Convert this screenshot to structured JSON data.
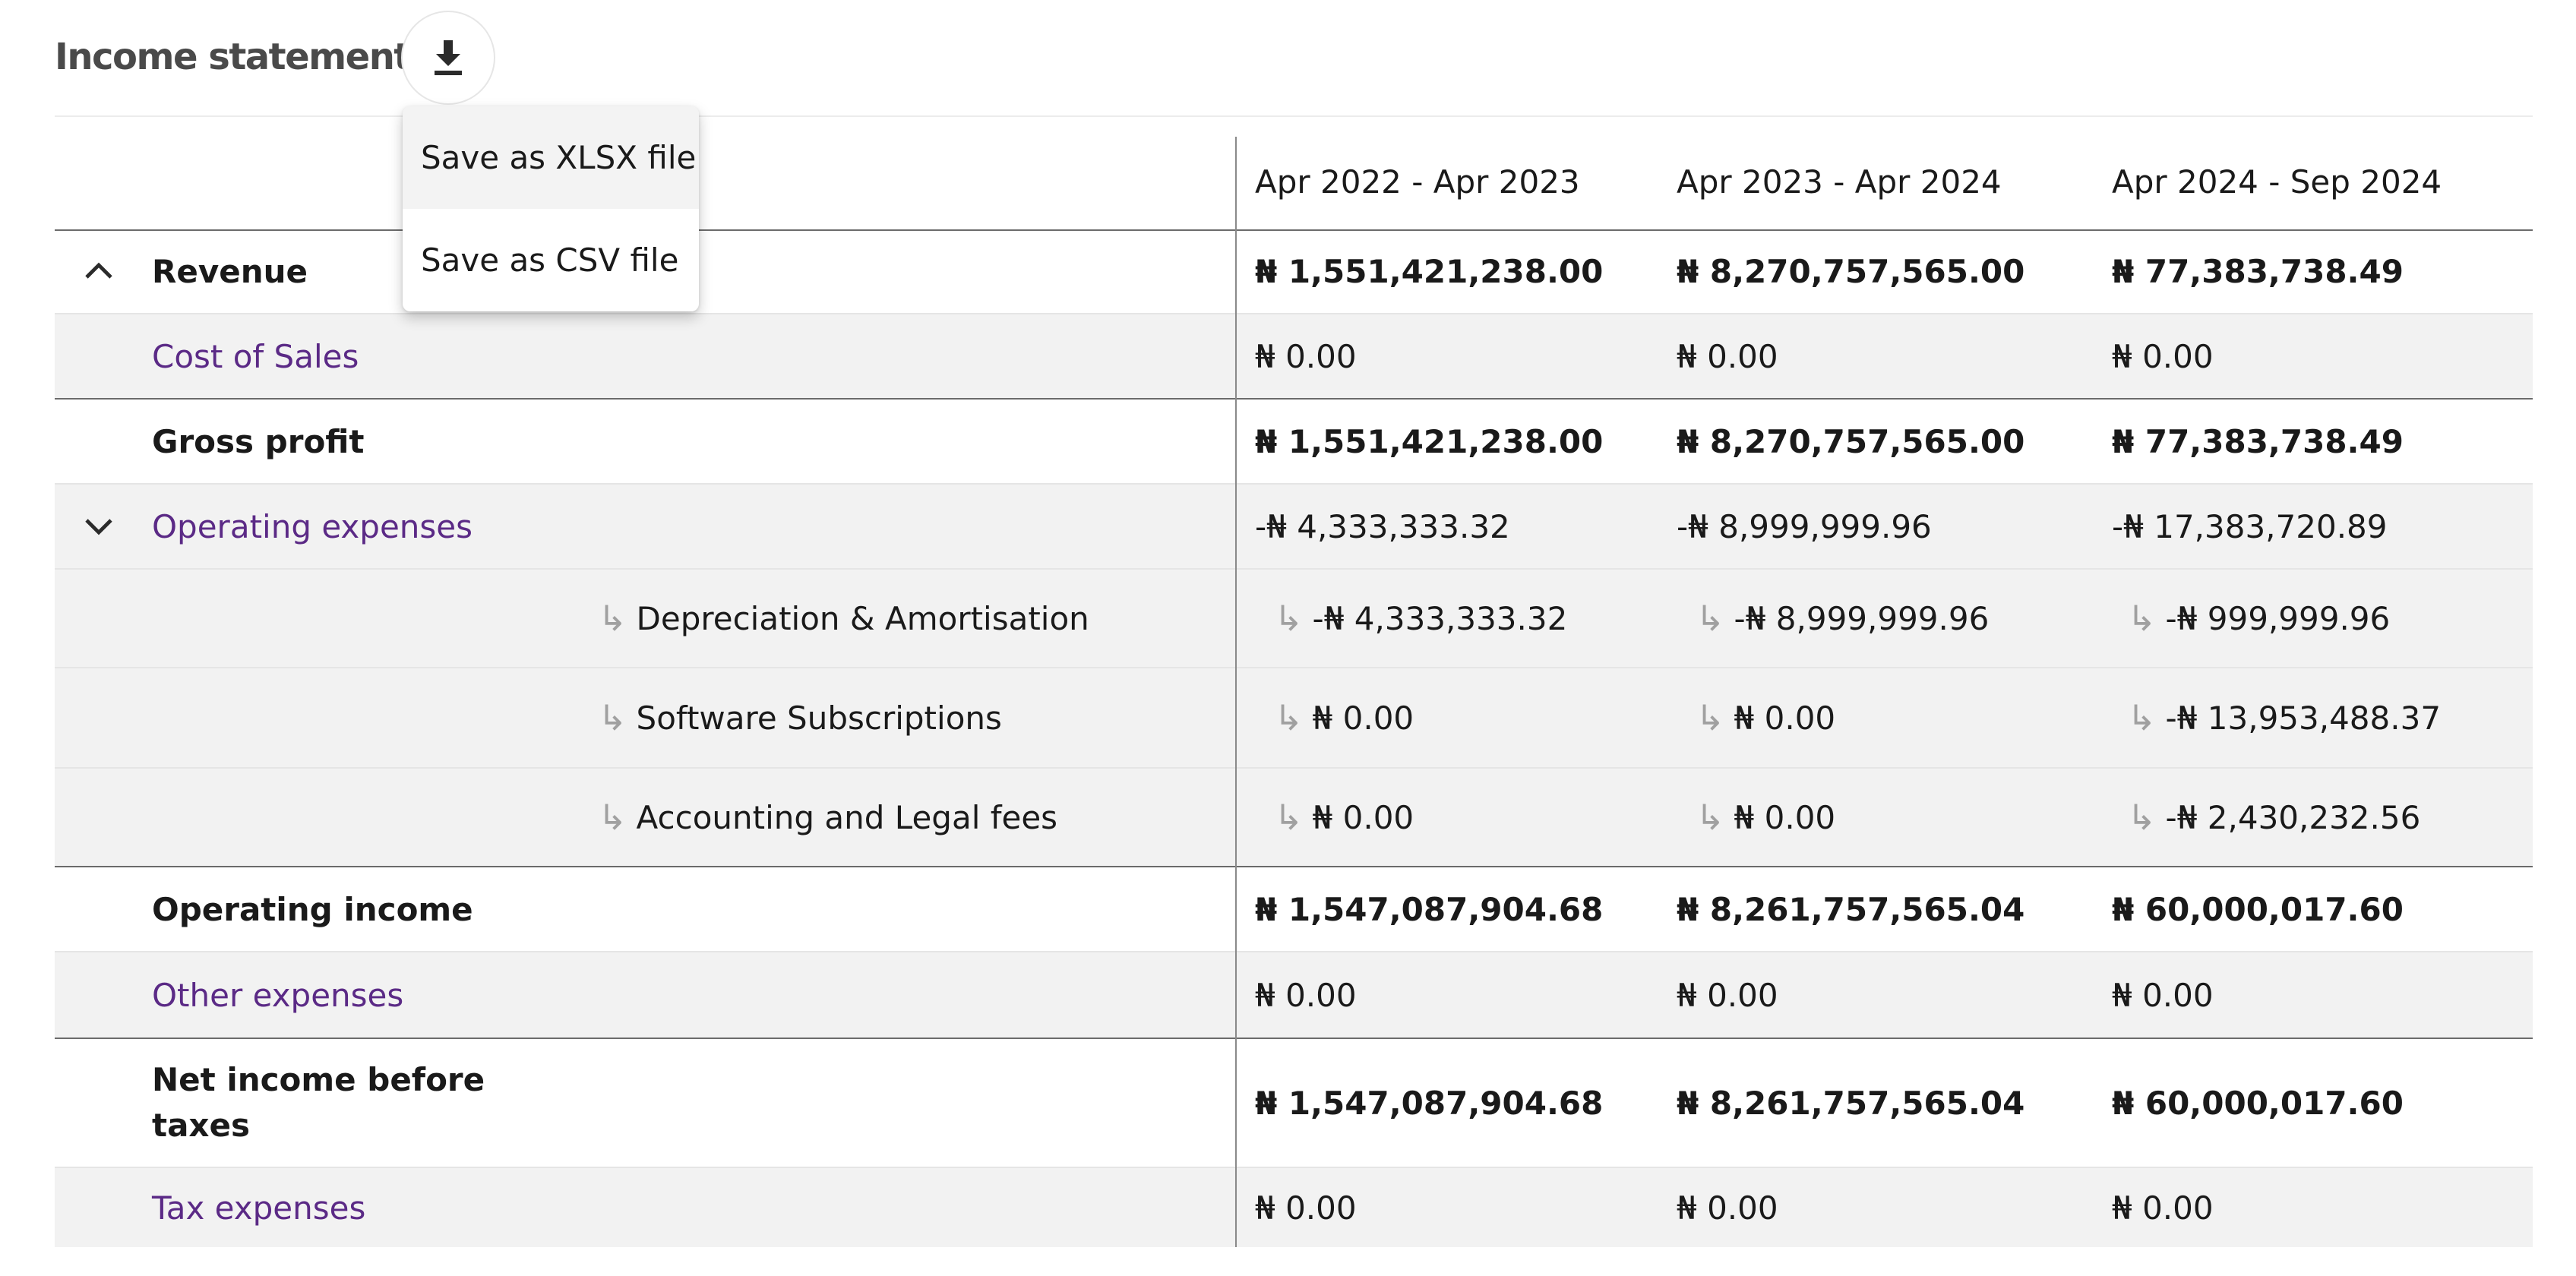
{
  "page": {
    "title": "Income statement",
    "download_icon": "download-icon"
  },
  "menu": {
    "items": [
      {
        "label": "Save as XLSX file"
      },
      {
        "label": "Save as CSV file"
      }
    ]
  },
  "table": {
    "columns": [
      "Apr 2022 - Apr 2023",
      "Apr 2023 - Apr 2024",
      "Apr 2024 - Sep 2024"
    ],
    "rows": {
      "revenue": {
        "label": "Revenue",
        "values": [
          "₦ 1,551,421,238.00",
          "₦ 8,270,757,565.00",
          "₦ 77,383,738.49"
        ],
        "toggle_icon": "chevron-up-icon"
      },
      "cost_of_sales": {
        "label": "Cost of Sales",
        "values": [
          "₦ 0.00",
          "₦ 0.00",
          "₦ 0.00"
        ]
      },
      "gross_profit": {
        "label": "Gross profit",
        "values": [
          "₦ 1,551,421,238.00",
          "₦ 8,270,757,565.00",
          "₦ 77,383,738.49"
        ]
      },
      "operating_expenses": {
        "label": "Operating expenses",
        "values": [
          "-₦ 4,333,333.32",
          "-₦ 8,999,999.96",
          "-₦ 17,383,720.89"
        ],
        "toggle_icon": "chevron-down-icon"
      },
      "depreciation": {
        "label": "Depreciation & Amortisation",
        "values": [
          "-₦ 4,333,333.32",
          "-₦ 8,999,999.96",
          "-₦ 999,999.96"
        ]
      },
      "software": {
        "label": "Software Subscriptions",
        "values": [
          "₦ 0.00",
          "₦ 0.00",
          "-₦ 13,953,488.37"
        ]
      },
      "accounting": {
        "label": "Accounting and Legal fees",
        "values": [
          "₦ 0.00",
          "₦ 0.00",
          "-₦ 2,430,232.56"
        ]
      },
      "operating_income": {
        "label": "Operating income",
        "values": [
          "₦ 1,547,087,904.68",
          "₦ 8,261,757,565.04",
          "₦ 60,000,017.60"
        ]
      },
      "other_expenses": {
        "label": "Other expenses",
        "values": [
          "₦ 0.00",
          "₦ 0.00",
          "₦ 0.00"
        ]
      },
      "net_income_before_taxes": {
        "label_line1": "Net income before",
        "label_line2": "taxes",
        "values": [
          "₦ 1,547,087,904.68",
          "₦ 8,261,757,565.04",
          "₦ 60,000,017.60"
        ]
      },
      "tax_expenses": {
        "label": "Tax expenses",
        "values": [
          "₦ 0.00",
          "₦ 0.00",
          "₦ 0.00"
        ]
      }
    },
    "sub_row_arrow": "↳"
  },
  "colors": {
    "link_purple": "#5b2a86",
    "row_grey": "#f2f2f2"
  }
}
